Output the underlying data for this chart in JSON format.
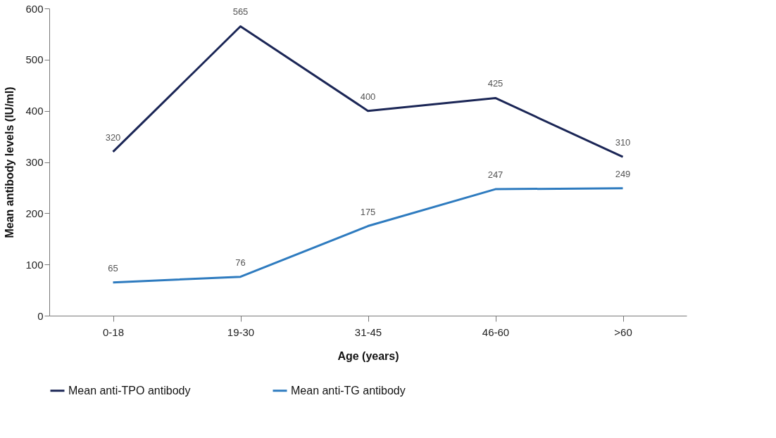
{
  "chart_data": {
    "type": "line",
    "xlabel": "Age (years)",
    "ylabel": "Mean antibody levels (IU/ml)",
    "categories": [
      "0-18",
      "19-30",
      "31-45",
      "46-60",
      ">60"
    ],
    "series": [
      {
        "name": "Mean anti-TPO antibody",
        "color": "#1b2656",
        "values": [
          320,
          565,
          400,
          425,
          310
        ]
      },
      {
        "name": "Mean anti-TG antibody",
        "color": "#2e7bbf",
        "values": [
          65,
          76,
          175,
          247,
          249
        ]
      }
    ],
    "ylim": [
      0,
      600
    ],
    "yticks": [
      0,
      100,
      200,
      300,
      400,
      500,
      600
    ],
    "grid": false,
    "legend": "bottom",
    "data_labels": true,
    "marker": "none",
    "line_style": "solid"
  }
}
